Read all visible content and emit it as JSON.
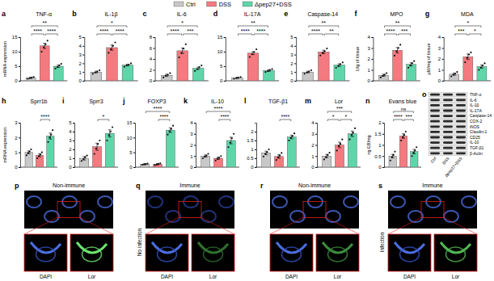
{
  "chart_data": [
    {
      "type": "bar",
      "panel": "a",
      "title": "TNF-α",
      "y_label": "mRNA expression",
      "categories": [
        null,
        null,
        null
      ],
      "tick_labels": "y",
      "values": [
        1,
        12,
        5
      ],
      "errors": [
        0.2,
        0.9,
        0.4
      ],
      "points": [
        [
          0.7,
          0.9,
          1.1,
          1.3
        ],
        [
          10,
          11.5,
          12.5,
          13.8
        ],
        [
          4.2,
          4.7,
          5.3,
          5.8
        ]
      ],
      "colors": [
        "#c8c8c8",
        "#f47a80",
        "#5fd6aa"
      ],
      "ylim": [
        0,
        15
      ],
      "yticks": [
        0,
        5,
        10,
        15
      ],
      "annotations": [
        {
          "pair": [
            0,
            2
          ],
          "text": "**"
        },
        {
          "pair": [
            0,
            1
          ],
          "text": "****"
        },
        {
          "pair": [
            1,
            2
          ],
          "text": "****"
        }
      ]
    },
    {
      "type": "bar",
      "panel": "b",
      "title": "IL-1β",
      "categories": [
        null,
        null,
        null
      ],
      "tick_labels": "y",
      "values": [
        1,
        3.8,
        1.8
      ],
      "errors": [
        0.1,
        0.3,
        0.1
      ],
      "points": [
        [
          0.8,
          0.95,
          1.05,
          1.2
        ],
        [
          3.2,
          3.6,
          4,
          4.4
        ],
        [
          1.6,
          1.75,
          1.85,
          2
        ]
      ],
      "colors": [
        "#c8c8c8",
        "#f47a80",
        "#5fd6aa"
      ],
      "ylim": [
        0,
        5
      ],
      "yticks": [
        0,
        1,
        2,
        3,
        4,
        5
      ],
      "annotations": [
        {
          "pair": [
            0,
            2
          ],
          "text": "*"
        },
        {
          "pair": [
            0,
            1
          ],
          "text": "****"
        },
        {
          "pair": [
            1,
            2
          ],
          "text": "****"
        }
      ]
    },
    {
      "type": "bar",
      "panel": "c",
      "title": "IL-6",
      "categories": [
        null,
        null,
        null
      ],
      "tick_labels": "y",
      "values": [
        1,
        5.5,
        2.3
      ],
      "errors": [
        0.2,
        0.5,
        0.2
      ],
      "points": [
        [
          0.6,
          0.9,
          1.1,
          1.4
        ],
        [
          4.3,
          5.1,
          5.9,
          6.7
        ],
        [
          1.8,
          2.1,
          2.5,
          2.8
        ]
      ],
      "colors": [
        "#c8c8c8",
        "#f47a80",
        "#5fd6aa"
      ],
      "ylim": [
        0,
        8
      ],
      "yticks": [
        0,
        2,
        4,
        6,
        8
      ],
      "annotations": [
        {
          "pair": [
            0,
            2
          ],
          "text": "*"
        },
        {
          "pair": [
            0,
            1
          ],
          "text": "****"
        },
        {
          "pair": [
            1,
            2
          ],
          "text": "***"
        }
      ]
    },
    {
      "type": "bar",
      "panel": "d",
      "title": "IL-17A",
      "categories": [
        null,
        null,
        null
      ],
      "tick_labels": "y",
      "values": [
        1,
        9.5,
        3.5
      ],
      "errors": [
        0.2,
        0.5,
        0.3
      ],
      "points": [
        [
          0.7,
          0.9,
          1.1,
          1.3
        ],
        [
          8.2,
          9.1,
          9.9,
          10.8
        ],
        [
          3,
          3.3,
          3.7,
          4
        ]
      ],
      "colors": [
        "#c8c8c8",
        "#f47a80",
        "#5fd6aa"
      ],
      "ylim": [
        0,
        15
      ],
      "yticks": [
        0,
        5,
        10,
        15
      ],
      "annotations": [
        {
          "pair": [
            0,
            2
          ],
          "text": "**"
        },
        {
          "pair": [
            0,
            1
          ],
          "text": "****"
        },
        {
          "pair": [
            1,
            2
          ],
          "text": "****"
        }
      ]
    },
    {
      "type": "bar",
      "panel": "e",
      "title": "Caspase-14",
      "categories": [
        null,
        null,
        null
      ],
      "tick_labels": "y",
      "values": [
        1,
        3.3,
        1.8
      ],
      "errors": [
        0.1,
        0.2,
        0.15
      ],
      "points": [
        [
          0.8,
          0.95,
          1.05,
          1.2
        ],
        [
          2.9,
          3.2,
          3.4,
          3.7
        ],
        [
          1.5,
          1.7,
          1.9,
          2.1
        ]
      ],
      "colors": [
        "#c8c8c8",
        "#f47a80",
        "#5fd6aa"
      ],
      "ylim": [
        0,
        5
      ],
      "yticks": [
        0,
        1,
        2,
        3,
        4,
        5
      ],
      "annotations": [
        {
          "pair": [
            0,
            2
          ],
          "text": "**"
        },
        {
          "pair": [
            0,
            1
          ],
          "text": "****"
        },
        {
          "pair": [
            1,
            2
          ],
          "text": "**"
        }
      ]
    },
    {
      "type": "bar",
      "panel": "f",
      "title": "MPO",
      "y_label": "U/g of tissue",
      "categories": [
        null,
        null,
        null
      ],
      "tick_labels": "y",
      "values": [
        0.5,
        2.8,
        1.5
      ],
      "errors": [
        0.1,
        0.25,
        0.15
      ],
      "points": [
        [
          0.3,
          0.45,
          0.55,
          0.7
        ],
        [
          2.3,
          2.7,
          3,
          3.3
        ],
        [
          1.2,
          1.4,
          1.6,
          1.8
        ]
      ],
      "colors": [
        "#c8c8c8",
        "#f47a80",
        "#5fd6aa"
      ],
      "ylim": [
        0,
        4
      ],
      "yticks": [
        0,
        1,
        2,
        3,
        4
      ],
      "annotations": [
        {
          "pair": [
            0,
            2
          ],
          "text": "**"
        },
        {
          "pair": [
            0,
            1
          ],
          "text": "****"
        },
        {
          "pair": [
            1,
            2
          ],
          "text": "***"
        }
      ]
    },
    {
      "type": "bar",
      "panel": "g",
      "title": "MDA",
      "y_label": "μM/mg of tissue",
      "categories": [
        null,
        null,
        null
      ],
      "tick_labels": "y",
      "values": [
        0.6,
        2.2,
        1.3
      ],
      "errors": [
        0.1,
        0.25,
        0.15
      ],
      "points": [
        [
          0.4,
          0.55,
          0.65,
          0.8
        ],
        [
          1.7,
          2.1,
          2.4,
          2.6
        ],
        [
          1,
          1.2,
          1.4,
          1.6
        ]
      ],
      "colors": [
        "#c8c8c8",
        "#f47a80",
        "#5fd6aa"
      ],
      "ylim": [
        0,
        4
      ],
      "yticks": [
        0,
        1,
        2,
        3,
        4
      ],
      "annotations": [
        {
          "pair": [
            0,
            2
          ],
          "text": "*"
        },
        {
          "pair": [
            0,
            1
          ],
          "text": "***"
        },
        {
          "pair": [
            1,
            2
          ],
          "text": "*"
        }
      ]
    },
    {
      "type": "bar",
      "panel": "h",
      "title": "Sprr1b",
      "y_label": "mRNA expression",
      "categories": [
        null,
        null,
        null
      ],
      "tick_labels": "y",
      "values": [
        1,
        0.8,
        2.1
      ],
      "errors": [
        0.1,
        0.1,
        0.2
      ],
      "points": [
        [
          0.8,
          0.95,
          1.05,
          1.2
        ],
        [
          0.6,
          0.75,
          0.85,
          1
        ],
        [
          1.7,
          2,
          2.2,
          2.5
        ]
      ],
      "colors": [
        "#c8c8c8",
        "#f47a80",
        "#5fd6aa"
      ],
      "ylim": [
        0,
        3
      ],
      "yticks": [
        0,
        1,
        2,
        3
      ],
      "annotations": [
        {
          "pair": [
            1,
            2
          ],
          "text": "****"
        }
      ]
    },
    {
      "type": "bar",
      "panel": "i",
      "title": "Sprr3",
      "categories": [
        null,
        null,
        null
      ],
      "tick_labels": "y",
      "values": [
        1,
        2.3,
        3.8
      ],
      "errors": [
        0.2,
        0.4,
        0.4
      ],
      "points": [
        [
          0.7,
          0.9,
          1.1,
          1.3
        ],
        [
          1.5,
          2.1,
          2.6,
          3
        ],
        [
          3,
          3.6,
          4,
          4.5
        ]
      ],
      "colors": [
        "#c8c8c8",
        "#f47a80",
        "#5fd6aa"
      ],
      "ylim": [
        0,
        5
      ],
      "yticks": [
        0,
        1,
        2,
        3,
        4,
        5
      ],
      "annotations": [
        {
          "pair": [
            1,
            2
          ],
          "text": "*"
        }
      ]
    },
    {
      "type": "bar",
      "panel": "j",
      "title": "FOXP3",
      "categories": [
        null,
        null,
        null
      ],
      "tick_labels": "y",
      "values": [
        1,
        1,
        12.5
      ],
      "errors": [
        0.2,
        0.2,
        0.8
      ],
      "points": [
        [
          0.8,
          0.95,
          1.05,
          1.2
        ],
        [
          0.7,
          0.9,
          1.1,
          1.3
        ],
        [
          11,
          12.1,
          12.9,
          14
        ]
      ],
      "colors": [
        "#c8c8c8",
        "#f47a80",
        "#5fd6aa"
      ],
      "ylim": [
        0,
        15
      ],
      "yticks": [
        0,
        5,
        10,
        15
      ],
      "annotations": [
        {
          "pair": [
            0,
            2
          ],
          "text": "****"
        },
        {
          "pair": [
            1,
            2
          ],
          "text": "****"
        }
      ]
    },
    {
      "type": "bar",
      "panel": "k",
      "title": "IL-10",
      "categories": [
        null,
        null,
        null
      ],
      "tick_labels": "y",
      "values": [
        1,
        0.8,
        2.4
      ],
      "errors": [
        0.1,
        0.1,
        0.3
      ],
      "points": [
        [
          0.8,
          0.95,
          1.05,
          1.2
        ],
        [
          0.6,
          0.75,
          0.85,
          1
        ],
        [
          1.8,
          2.2,
          2.6,
          3
        ]
      ],
      "colors": [
        "#c8c8c8",
        "#f47a80",
        "#5fd6aa"
      ],
      "ylim": [
        0,
        4
      ],
      "yticks": [
        0,
        1,
        2,
        3,
        4
      ],
      "annotations": [
        {
          "pair": [
            0,
            2
          ],
          "text": "****"
        },
        {
          "pair": [
            1,
            2
          ],
          "text": "****"
        }
      ]
    },
    {
      "type": "bar",
      "panel": "l",
      "title": "TGF-β1",
      "categories": [
        null,
        null,
        null
      ],
      "tick_labels": "y",
      "values": [
        0.8,
        0.6,
        1.7
      ],
      "errors": [
        0.1,
        0.1,
        0.1
      ],
      "points": [
        [
          0.6,
          0.75,
          0.85,
          1
        ],
        [
          0.4,
          0.55,
          0.65,
          0.8
        ],
        [
          1.5,
          1.65,
          1.75,
          1.9
        ]
      ],
      "colors": [
        "#c8c8c8",
        "#f47a80",
        "#5fd6aa"
      ],
      "ylim": [
        0,
        2.5
      ],
      "yticks": [
        0,
        0.5,
        1,
        1.5,
        2
      ],
      "annotations": [
        {
          "pair": [
            1,
            2
          ],
          "text": "****"
        }
      ]
    },
    {
      "type": "bar",
      "panel": "m",
      "title": "Lor",
      "categories": [
        null,
        null,
        null
      ],
      "tick_labels": "y",
      "values": [
        1,
        2,
        3
      ],
      "errors": [
        0.15,
        0.25,
        0.25
      ],
      "points": [
        [
          0.7,
          0.9,
          1.1,
          1.3
        ],
        [
          1.5,
          1.9,
          2.1,
          2.5
        ],
        [
          2.5,
          2.9,
          3.1,
          3.5
        ]
      ],
      "colors": [
        "#c8c8c8",
        "#f47a80",
        "#5fd6aa"
      ],
      "ylim": [
        0,
        4
      ],
      "yticks": [
        0,
        1,
        2,
        3,
        4
      ],
      "annotations": [
        {
          "pair": [
            0,
            2
          ],
          "text": "***"
        },
        {
          "pair": [
            0,
            1
          ],
          "text": "*"
        },
        {
          "pair": [
            1,
            2
          ],
          "text": "*"
        }
      ]
    },
    {
      "type": "bar",
      "panel": "n",
      "title": "Evans blue",
      "y_label": "ng EB/mg",
      "categories": [
        null,
        null,
        null
      ],
      "tick_labels": "y",
      "values": [
        0.5,
        1.4,
        0.7
      ],
      "errors": [
        0.08,
        0.1,
        0.1
      ],
      "points": [
        [
          0.3,
          0.45,
          0.55,
          0.7
        ],
        [
          1.2,
          1.35,
          1.45,
          1.6
        ],
        [
          0.5,
          0.65,
          0.75,
          0.9
        ]
      ],
      "colors": [
        "#c8c8c8",
        "#f47a80",
        "#5fd6aa"
      ],
      "ylim": [
        0,
        2
      ],
      "yticks": [
        0,
        0.5,
        1,
        1.5,
        2
      ],
      "annotations": [
        {
          "pair": [
            0,
            2
          ],
          "text": "ns"
        },
        {
          "pair": [
            0,
            1
          ],
          "text": "****"
        },
        {
          "pair": [
            1,
            2
          ],
          "text": "***"
        }
      ]
    }
  ],
  "legend": {
    "entries": [
      {
        "name": "Ctrl",
        "color": "#c8c8c8"
      },
      {
        "name": "DSS",
        "color": "#f47a80"
      },
      {
        "name": "Δpep27+DSS",
        "color": "#5fd6aa"
      }
    ]
  },
  "blot": {
    "panel": "o",
    "rows": [
      "TNF-α",
      "IL-6",
      "IL-1β",
      "IL-17A",
      "Caspase-14",
      "COX-2",
      "iNOS",
      "Claudin-1",
      "CD25",
      "IL-10",
      "TGF-β1",
      "β-Actin"
    ],
    "lanes": [
      "Ctrl",
      "DSS",
      "Δpep27+DSS"
    ]
  },
  "images": [
    {
      "panel": "p",
      "title": "Non-immune",
      "bottom_labels": [
        "DAPI",
        "Lor"
      ]
    },
    {
      "panel": "q",
      "title": "Immune",
      "side_label": "No infection",
      "bottom_labels": [
        "DAPI",
        "Lor"
      ]
    },
    {
      "panel": "r",
      "title": "Non-immune",
      "bottom_labels": [
        "DAPI",
        "Lor"
      ]
    },
    {
      "panel": "s",
      "title": "Immune",
      "side_label": "Infection",
      "bottom_labels": [
        "DAPI",
        "Lor"
      ]
    }
  ]
}
